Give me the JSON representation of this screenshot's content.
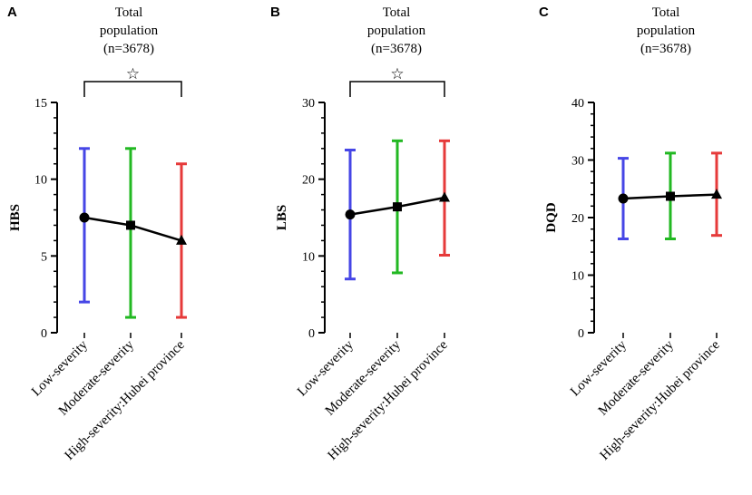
{
  "colors": {
    "low": "#4646e6",
    "moderate": "#22b822",
    "high": "#e63a3a",
    "line": "#000000"
  },
  "chart_data": [
    {
      "panel": "A",
      "type": "line",
      "title_lines": [
        "Total",
        "population",
        "(n=3678)"
      ],
      "ylabel": "HBS",
      "ylim": [
        0,
        15
      ],
      "yticks": [
        0,
        5,
        10,
        15
      ],
      "categories": [
        "Low-severity",
        "Moderate-severity",
        "High-severity:Hubei province"
      ],
      "markers": [
        "circle",
        "square",
        "triangle"
      ],
      "values": [
        7.5,
        7.0,
        6.0
      ],
      "error_low": [
        2,
        1,
        1
      ],
      "error_high": [
        12,
        12,
        11
      ],
      "significance": {
        "from": 0,
        "to": 2,
        "symbol": "☆"
      }
    },
    {
      "panel": "B",
      "type": "line",
      "title_lines": [
        "Total",
        "population",
        "(n=3678)"
      ],
      "ylabel": "LBS",
      "ylim": [
        0,
        30
      ],
      "yticks": [
        0,
        10,
        20,
        30
      ],
      "categories": [
        "Low-severity",
        "Moderate-severity",
        "High-severity:Hubei province"
      ],
      "markers": [
        "circle",
        "square",
        "triangle"
      ],
      "values": [
        15.4,
        16.4,
        17.6
      ],
      "error_low": [
        7,
        7.8,
        10.1
      ],
      "error_high": [
        23.8,
        25,
        25
      ],
      "significance": {
        "from": 0,
        "to": 2,
        "symbol": "☆"
      }
    },
    {
      "panel": "C",
      "type": "line",
      "title_lines": [
        "Total",
        "population",
        "(n=3678)"
      ],
      "ylabel": "DQD",
      "ylim": [
        0,
        40
      ],
      "yticks": [
        0,
        10,
        20,
        30,
        40
      ],
      "categories": [
        "Low-severity",
        "Moderate-severity",
        "High-severity:Hubei province"
      ],
      "markers": [
        "circle",
        "square",
        "triangle"
      ],
      "values": [
        23.3,
        23.7,
        24.0
      ],
      "error_low": [
        16.3,
        16.3,
        16.9
      ],
      "error_high": [
        30.3,
        31.2,
        31.2
      ],
      "significance": null
    }
  ]
}
